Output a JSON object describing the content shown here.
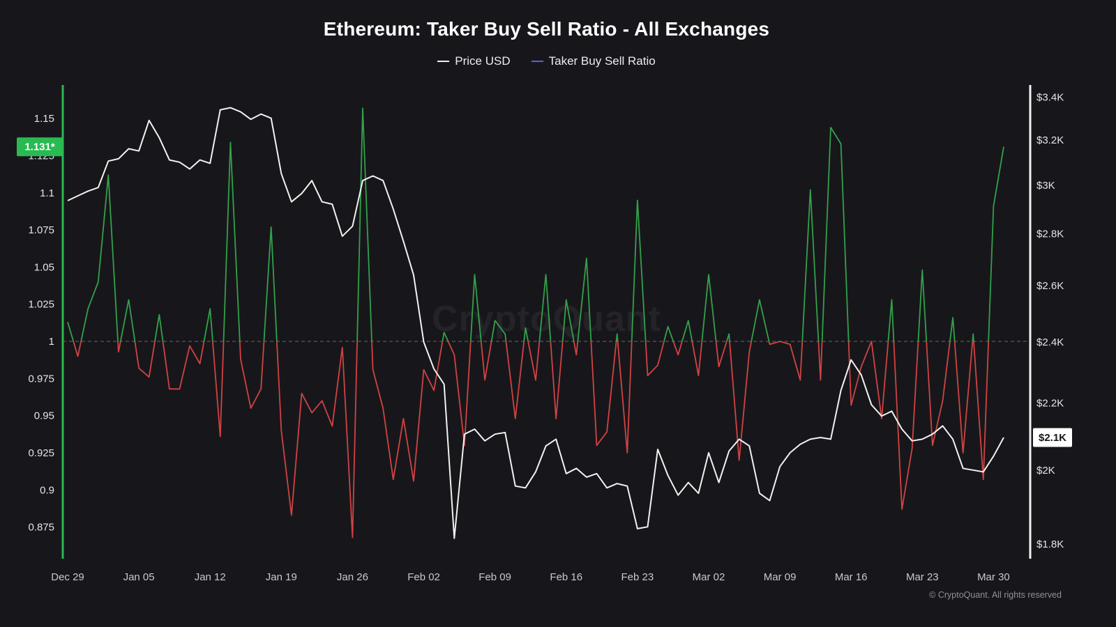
{
  "footer": {
    "text": "© CryptoQuant. All rights reserved"
  },
  "chart_data": {
    "type": "line",
    "title": "Ethereum: Taker Buy Sell Ratio - All Exchanges",
    "watermark": "CryptoQuant",
    "legend_position": "top-center",
    "grid": "off",
    "colors": {
      "background": "#17171b",
      "price_line": "#f2f2f2",
      "ratio_up": "#33a14a",
      "ratio_down": "#d14343",
      "left_axis": "#29ba50",
      "right_axis": "#f2f2f2",
      "baseline": "#67676d",
      "legend_ratio_swatch": "#5d5de0",
      "badge_left_bg": "#29ba50",
      "badge_left_text": "#ffffff",
      "badge_right_bg": "#ffffff",
      "badge_right_text": "#17171b",
      "tick_text": "#e4e4e8",
      "date_text": "#c8c8cd"
    },
    "x": [
      "Dec 29",
      "Dec 30",
      "Dec 31",
      "Jan 01",
      "Jan 02",
      "Jan 03",
      "Jan 04",
      "Jan 05",
      "Jan 06",
      "Jan 07",
      "Jan 08",
      "Jan 09",
      "Jan 10",
      "Jan 11",
      "Jan 12",
      "Jan 13",
      "Jan 14",
      "Jan 15",
      "Jan 16",
      "Jan 17",
      "Jan 18",
      "Jan 19",
      "Jan 20",
      "Jan 21",
      "Jan 22",
      "Jan 23",
      "Jan 24",
      "Jan 25",
      "Jan 26",
      "Jan 27",
      "Jan 28",
      "Jan 29",
      "Jan 30",
      "Jan 31",
      "Feb 01",
      "Feb 02",
      "Feb 03",
      "Feb 04",
      "Feb 05",
      "Feb 06",
      "Feb 07",
      "Feb 08",
      "Feb 09",
      "Feb 10",
      "Feb 11",
      "Feb 12",
      "Feb 13",
      "Feb 14",
      "Feb 15",
      "Feb 16",
      "Feb 17",
      "Feb 18",
      "Feb 19",
      "Feb 20",
      "Feb 21",
      "Feb 22",
      "Feb 23",
      "Feb 24",
      "Feb 25",
      "Feb 26",
      "Feb 27",
      "Feb 28",
      "Mar 01",
      "Mar 02",
      "Mar 03",
      "Mar 04",
      "Mar 05",
      "Mar 06",
      "Mar 07",
      "Mar 08",
      "Mar 09",
      "Mar 10",
      "Mar 11",
      "Mar 12",
      "Mar 13",
      "Mar 14",
      "Mar 15",
      "Mar 16",
      "Mar 17",
      "Mar 18",
      "Mar 19",
      "Mar 20",
      "Mar 21",
      "Mar 22",
      "Mar 23",
      "Mar 24",
      "Mar 25",
      "Mar 26",
      "Mar 27",
      "Mar 28",
      "Mar 29",
      "Mar 30",
      "Mar 31"
    ],
    "x_ticks": {
      "labels": [
        "Dec 29",
        "Jan 05",
        "Jan 12",
        "Jan 19",
        "Jan 26",
        "Feb 02",
        "Feb 09",
        "Feb 16",
        "Feb 23",
        "Mar 02",
        "Mar 09",
        "Mar 16",
        "Mar 23",
        "Mar 30"
      ],
      "interval_days": 7
    },
    "series": [
      {
        "name": "Price USD",
        "axis": "right",
        "color": "#f2f2f2",
        "values": [
          2935,
          2955,
          2975,
          2990,
          3105,
          3115,
          3160,
          3150,
          3290,
          3210,
          3110,
          3100,
          3070,
          3110,
          3095,
          3340,
          3350,
          3330,
          3295,
          3320,
          3300,
          3050,
          2930,
          2965,
          3020,
          2930,
          2920,
          2790,
          2830,
          3020,
          3040,
          3020,
          2900,
          2770,
          2640,
          2400,
          2310,
          2260,
          1815,
          2105,
          2120,
          2085,
          2105,
          2110,
          1955,
          1950,
          1995,
          2070,
          2090,
          1990,
          2005,
          1980,
          1990,
          1950,
          1962,
          1955,
          1840,
          1845,
          2060,
          1985,
          1930,
          1965,
          1935,
          2050,
          1965,
          2055,
          2090,
          2070,
          1935,
          1915,
          2010,
          2050,
          2075,
          2090,
          2095,
          2090,
          2240,
          2340,
          2290,
          2195,
          2160,
          2175,
          2120,
          2085,
          2090,
          2105,
          2130,
          2090,
          2005,
          2000,
          1995,
          2040,
          2095
        ]
      },
      {
        "name": "Taker Buy Sell Ratio",
        "axis": "left",
        "baseline": 1,
        "color_above": "#33a14a",
        "color_below": "#d14343",
        "values": [
          1.013,
          0.99,
          1.022,
          1.04,
          1.112,
          0.993,
          1.028,
          0.982,
          0.976,
          1.018,
          0.968,
          0.968,
          0.997,
          0.985,
          1.022,
          0.936,
          1.134,
          0.988,
          0.955,
          0.968,
          1.077,
          0.94,
          0.883,
          0.965,
          0.952,
          0.96,
          0.943,
          0.996,
          0.868,
          1.157,
          0.981,
          0.955,
          0.907,
          0.948,
          0.906,
          0.981,
          0.967,
          1.006,
          0.991,
          0.93,
          1.045,
          0.974,
          1.014,
          1.005,
          0.948,
          1.009,
          0.974,
          1.045,
          0.948,
          1.028,
          0.991,
          1.056,
          0.93,
          0.939,
          1.005,
          0.925,
          1.095,
          0.977,
          0.984,
          1.01,
          0.991,
          1.014,
          0.977,
          1.045,
          0.983,
          1.005,
          0.92,
          0.993,
          1.028,
          0.998,
          1.0,
          0.998,
          0.974,
          1.102,
          0.974,
          1.144,
          1.133,
          0.957,
          0.983,
          1.0,
          0.948,
          1.028,
          0.887,
          0.928,
          1.048,
          0.93,
          0.96,
          1.016,
          0.925,
          1.005,
          0.907,
          1.091,
          1.131
        ]
      }
    ],
    "y_left": {
      "scale": "linear",
      "range": [
        0.8537,
        1.1726
      ],
      "ticks": [
        0.875,
        0.9,
        0.925,
        0.95,
        0.975,
        1,
        1.025,
        1.05,
        1.075,
        1.1,
        1.125,
        1.15
      ],
      "latest": {
        "text": "1.131*",
        "value": 1.131
      }
    },
    "y_right": {
      "scale": "log",
      "range": [
        1763,
        3460
      ],
      "ticks": [
        {
          "label": "$3.4K",
          "value": 3400
        },
        {
          "label": "$3.2K",
          "value": 3200
        },
        {
          "label": "$3K",
          "value": 3000
        },
        {
          "label": "$2.8K",
          "value": 2800
        },
        {
          "label": "$2.6K",
          "value": 2600
        },
        {
          "label": "$2.4K",
          "value": 2400
        },
        {
          "label": "$2.2K",
          "value": 2200
        },
        {
          "label": "$2K",
          "value": 2000
        },
        {
          "label": "$1.8K",
          "value": 1800
        }
      ],
      "latest": {
        "text": "$2.1K",
        "value": 2095
      }
    }
  }
}
